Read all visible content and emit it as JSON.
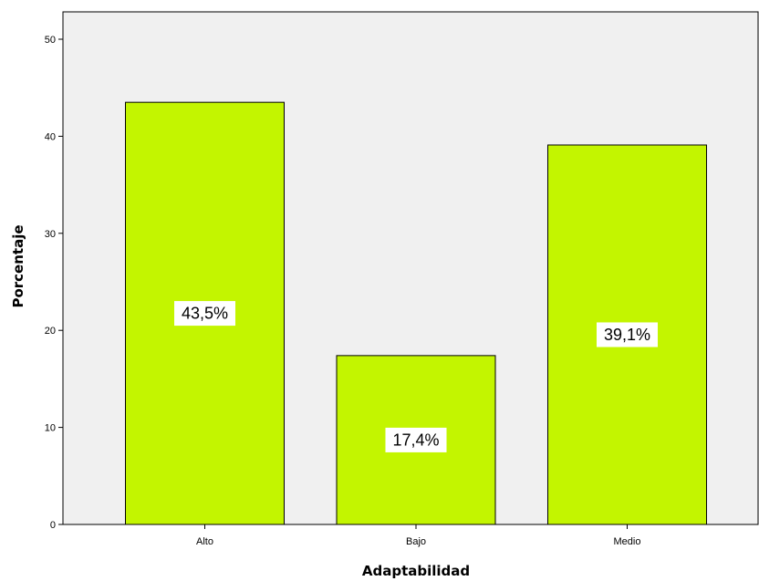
{
  "chart_data": {
    "type": "bar",
    "categories": [
      "Alto",
      "Bajo",
      "Medio"
    ],
    "values": [
      43.5,
      17.4,
      39.1
    ],
    "data_labels": [
      "43,5%",
      "17,4%",
      "39,1%"
    ],
    "xlabel": "Adaptabilidad",
    "ylabel": "Porcentaje",
    "ylim": [
      0,
      50
    ],
    "yticks": [
      0,
      10,
      20,
      30,
      40,
      50
    ],
    "grid": false,
    "colors": {
      "bar_fill": "#c3f500",
      "plot_background": "#f0f0f0",
      "label_box": "#ffffff"
    }
  }
}
